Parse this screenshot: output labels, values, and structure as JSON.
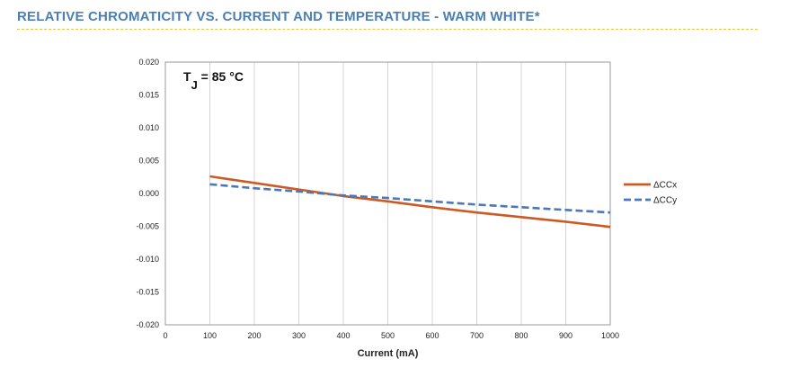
{
  "page": {
    "title": "RELATIVE CHROMATICITY VS. CURRENT AND TEMPERATURE - WARM WHITE*",
    "title_color": "#4a7fb5",
    "rule_color": "#e2c640"
  },
  "chart_data": {
    "type": "line",
    "title": "",
    "xlabel": "Current (mA)",
    "ylabel": "",
    "xlim": [
      0,
      1000
    ],
    "ylim": [
      -0.02,
      0.02
    ],
    "xticks": [
      "0",
      "100",
      "200",
      "300",
      "400",
      "500",
      "600",
      "700",
      "800",
      "900",
      "1000"
    ],
    "yticks": [
      "0.020",
      "0.015",
      "0.010",
      "0.005",
      "0.000",
      "-0.005",
      "-0.010",
      "-0.015",
      "-0.020"
    ],
    "grid": "vertical",
    "legend_position": "right",
    "annotation": {
      "main": "T",
      "sub": "J",
      "rest": " = 85 °C"
    },
    "series": [
      {
        "name": "ΔCCx",
        "color": "#cc5a24",
        "dash": "solid",
        "x": [
          100,
          200,
          300,
          400,
          500,
          600,
          700,
          800,
          900,
          1000
        ],
        "y": [
          0.0026,
          0.0016,
          0.0006,
          -0.0004,
          -0.0012,
          -0.0021,
          -0.0029,
          -0.0036,
          -0.0043,
          -0.0051
        ]
      },
      {
        "name": "ΔCCy",
        "color": "#4b78b8",
        "dash": "dashed",
        "x": [
          100,
          200,
          300,
          400,
          500,
          600,
          700,
          800,
          900,
          1000
        ],
        "y": [
          0.0014,
          0.0008,
          0.0003,
          -0.0003,
          -0.0007,
          -0.0012,
          -0.0017,
          -0.0021,
          -0.0025,
          -0.0029
        ]
      }
    ]
  }
}
